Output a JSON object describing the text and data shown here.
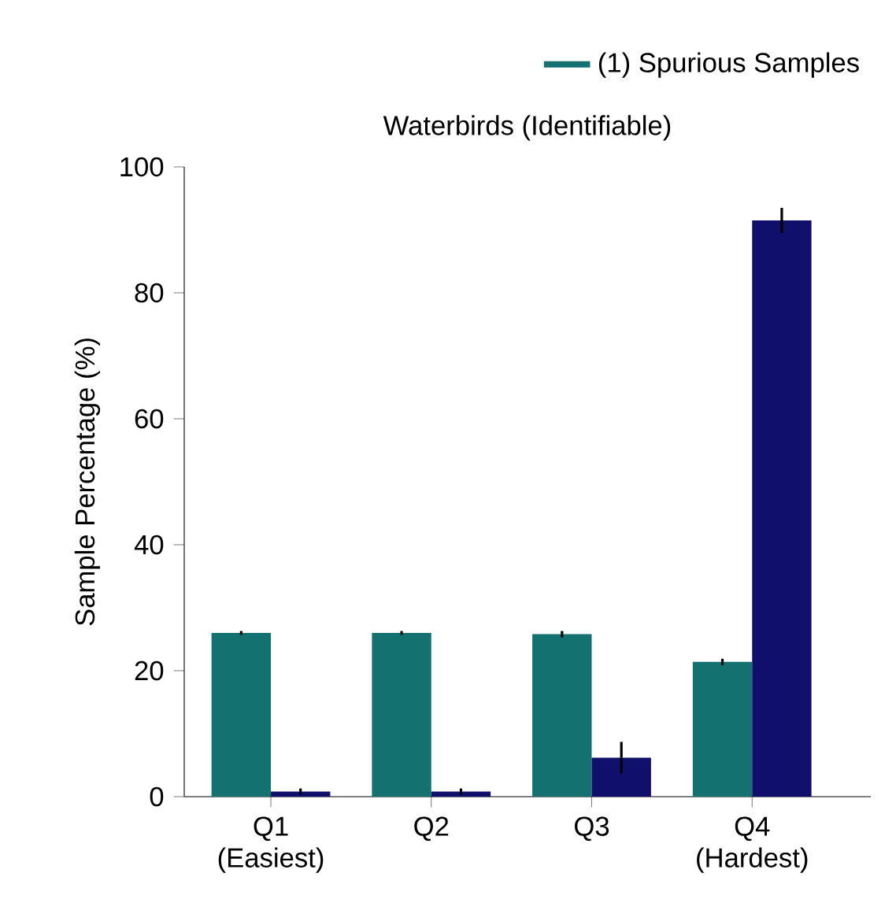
{
  "chart_data": {
    "type": "bar",
    "title": "Waterbirds (Identifiable)",
    "ylabel": "Sample Percentage (%)",
    "categories": [
      "Q1 (Easiest)",
      "Q2",
      "Q3",
      "Q4 (Hardest)"
    ],
    "series": [
      {
        "name": "(1) Spurious Samples",
        "color": "#137170",
        "values": [
          26,
          26,
          25.8,
          21.4
        ],
        "errors": [
          0.3,
          0.3,
          0.5,
          0.5
        ]
      },
      {
        "color": "#10106c",
        "values": [
          0.8,
          0.8,
          6.2,
          91.5
        ],
        "errors": [
          0.5,
          0.5,
          2.5,
          2
        ]
      }
    ],
    "ylim": [
      0,
      100
    ],
    "yticks": [
      0,
      20,
      40,
      60,
      80,
      100
    ],
    "legend": "top right"
  }
}
